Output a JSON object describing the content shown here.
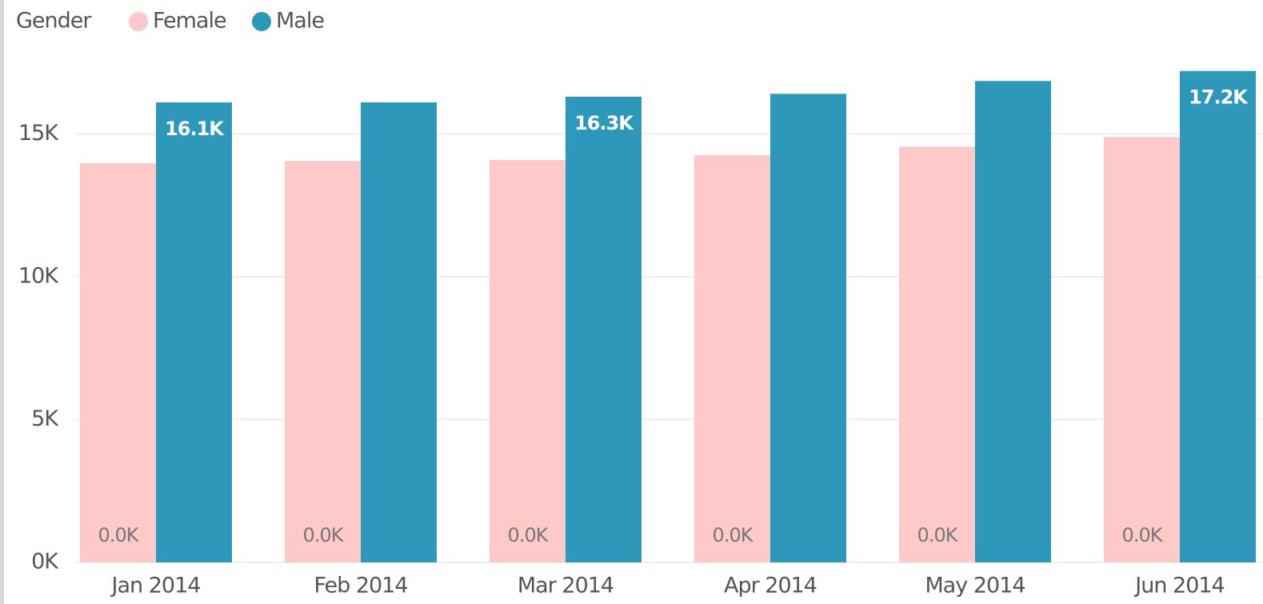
{
  "chart_data": {
    "type": "bar",
    "legend_title": "Gender",
    "categories": [
      "Jan 2014",
      "Feb 2014",
      "Mar 2014",
      "Apr 2014",
      "May 2014",
      "Jun 2014"
    ],
    "series": [
      {
        "name": "Female",
        "color": "#fdc9c9",
        "values": [
          13970,
          14050,
          14080,
          14250,
          14550,
          14890
        ]
      },
      {
        "name": "Male",
        "color": "#2e98bb",
        "values": [
          16100,
          16100,
          16300,
          16400,
          16850,
          17200
        ],
        "value_labels": [
          "16.1K",
          null,
          "16.3K",
          null,
          null,
          "17.2K"
        ]
      }
    ],
    "annotations": [
      "0.0K",
      "0.0K",
      "0.0K",
      "0.0K",
      "0.0K",
      "0.0K"
    ],
    "ylim": [
      0,
      17500
    ],
    "yticks": [
      {
        "value": 0,
        "label": "0K"
      },
      {
        "value": 5000,
        "label": "5K"
      },
      {
        "value": 10000,
        "label": "10K"
      },
      {
        "value": 15000,
        "label": "15K"
      }
    ],
    "grid": true
  }
}
